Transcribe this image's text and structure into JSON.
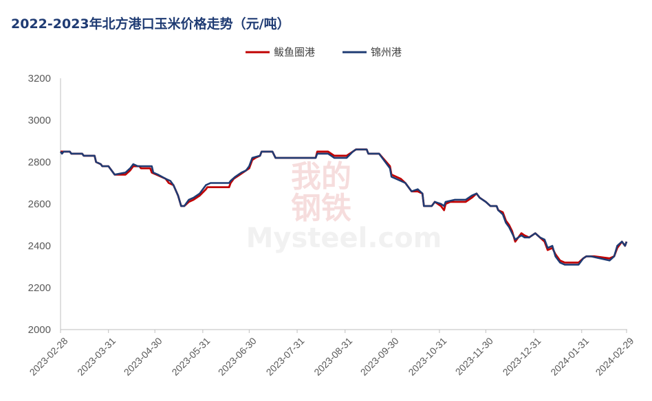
{
  "chart_data": {
    "type": "line",
    "title": "2022-2023年北方港口玉米价格走势（元/吨）",
    "xlabel": "",
    "ylabel": "",
    "ylim": [
      2000,
      3200
    ],
    "yticks": [
      2000,
      2200,
      2400,
      2600,
      2800,
      3000,
      3200
    ],
    "xlim": [
      "2023-02-28",
      "2024-02-29"
    ],
    "xticks": [
      "2023-02-28",
      "2023-03-31",
      "2023-04-30",
      "2023-05-31",
      "2023-06-30",
      "2023-07-31",
      "2023-08-31",
      "2023-09-30",
      "2023-10-31",
      "2023-11-30",
      "2023-12-31",
      "2024-01-31",
      "2024-02-29"
    ],
    "grid": false,
    "legend_position": "top-center",
    "series": [
      {
        "name": "鲅鱼圈港",
        "color": "#c00000",
        "points": [
          [
            "2023-02-28",
            2850
          ],
          [
            "2023-03-06",
            2850
          ],
          [
            "2023-03-07",
            2840
          ],
          [
            "2023-03-14",
            2840
          ],
          [
            "2023-03-15",
            2830
          ],
          [
            "2023-03-22",
            2830
          ],
          [
            "2023-03-23",
            2800
          ],
          [
            "2023-03-26",
            2790
          ],
          [
            "2023-03-27",
            2780
          ],
          [
            "2023-03-31",
            2780
          ],
          [
            "2023-04-02",
            2760
          ],
          [
            "2023-04-04",
            2740
          ],
          [
            "2023-04-11",
            2740
          ],
          [
            "2023-04-14",
            2760
          ],
          [
            "2023-04-16",
            2780
          ],
          [
            "2023-04-20",
            2780
          ],
          [
            "2023-04-21",
            2770
          ],
          [
            "2023-04-27",
            2770
          ],
          [
            "2023-04-28",
            2750
          ],
          [
            "2023-05-04",
            2730
          ],
          [
            "2023-05-07",
            2720
          ],
          [
            "2023-05-09",
            2700
          ],
          [
            "2023-05-12",
            2690
          ],
          [
            "2023-05-15",
            2640
          ],
          [
            "2023-05-17",
            2590
          ],
          [
            "2023-05-19",
            2590
          ],
          [
            "2023-05-22",
            2610
          ],
          [
            "2023-05-25",
            2620
          ],
          [
            "2023-05-29",
            2640
          ],
          [
            "2023-06-02",
            2670
          ],
          [
            "2023-06-03",
            2680
          ],
          [
            "2023-06-17",
            2680
          ],
          [
            "2023-06-18",
            2700
          ],
          [
            "2023-06-20",
            2720
          ],
          [
            "2023-06-24",
            2740
          ],
          [
            "2023-06-28",
            2760
          ],
          [
            "2023-06-30",
            2770
          ],
          [
            "2023-07-02",
            2810
          ],
          [
            "2023-07-04",
            2820
          ],
          [
            "2023-07-07",
            2830
          ],
          [
            "2023-07-08",
            2850
          ],
          [
            "2023-07-15",
            2850
          ],
          [
            "2023-07-17",
            2820
          ],
          [
            "2023-08-12",
            2820
          ],
          [
            "2023-08-13",
            2850
          ],
          [
            "2023-08-20",
            2850
          ],
          [
            "2023-08-22",
            2840
          ],
          [
            "2023-08-24",
            2830
          ],
          [
            "2023-09-01",
            2830
          ],
          [
            "2023-09-05",
            2850
          ],
          [
            "2023-09-07",
            2860
          ],
          [
            "2023-09-14",
            2860
          ],
          [
            "2023-09-15",
            2840
          ],
          [
            "2023-09-22",
            2840
          ],
          [
            "2023-09-29",
            2780
          ],
          [
            "2023-09-30",
            2740
          ],
          [
            "2023-10-03",
            2730
          ],
          [
            "2023-10-06",
            2720
          ],
          [
            "2023-10-09",
            2700
          ],
          [
            "2023-10-13",
            2660
          ],
          [
            "2023-10-17",
            2660
          ],
          [
            "2023-10-20",
            2650
          ],
          [
            "2023-10-21",
            2590
          ],
          [
            "2023-10-26",
            2590
          ],
          [
            "2023-10-28",
            2610
          ],
          [
            "2023-11-01",
            2590
          ],
          [
            "2023-11-02",
            2580
          ],
          [
            "2023-11-03",
            2570
          ],
          [
            "2023-11-04",
            2600
          ],
          [
            "2023-11-07",
            2610
          ],
          [
            "2023-11-17",
            2610
          ],
          [
            "2023-11-21",
            2630
          ],
          [
            "2023-11-24",
            2650
          ],
          [
            "2023-11-26",
            2630
          ],
          [
            "2023-11-30",
            2610
          ],
          [
            "2023-12-03",
            2590
          ],
          [
            "2023-12-07",
            2590
          ],
          [
            "2023-12-08",
            2570
          ],
          [
            "2023-12-11",
            2560
          ],
          [
            "2023-12-13",
            2520
          ],
          [
            "2023-12-15",
            2500
          ],
          [
            "2023-12-17",
            2470
          ],
          [
            "2023-12-19",
            2420
          ],
          [
            "2023-12-21",
            2440
          ],
          [
            "2023-12-23",
            2460
          ],
          [
            "2023-12-25",
            2450
          ],
          [
            "2023-12-28",
            2440
          ],
          [
            "2024-01-01",
            2460
          ],
          [
            "2024-01-04",
            2440
          ],
          [
            "2024-01-07",
            2420
          ],
          [
            "2024-01-09",
            2380
          ],
          [
            "2024-01-12",
            2390
          ],
          [
            "2024-01-14",
            2360
          ],
          [
            "2024-01-17",
            2330
          ],
          [
            "2024-01-20",
            2320
          ],
          [
            "2024-01-27",
            2320
          ],
          [
            "2024-01-29",
            2320
          ],
          [
            "2024-02-01",
            2340
          ],
          [
            "2024-02-03",
            2350
          ],
          [
            "2024-02-08",
            2350
          ],
          [
            "2024-02-18",
            2340
          ],
          [
            "2024-02-21",
            2350
          ],
          [
            "2024-02-23",
            2390
          ],
          [
            "2024-02-26",
            2420
          ],
          [
            "2024-02-28",
            2400
          ],
          [
            "2024-02-29",
            2420
          ]
        ]
      },
      {
        "name": "锦州港",
        "color": "#1f3b73",
        "points": [
          [
            "2023-02-28",
            2850
          ],
          [
            "2023-03-01",
            2840
          ],
          [
            "2023-03-02",
            2850
          ],
          [
            "2023-03-06",
            2850
          ],
          [
            "2023-03-07",
            2840
          ],
          [
            "2023-03-14",
            2840
          ],
          [
            "2023-03-15",
            2830
          ],
          [
            "2023-03-22",
            2830
          ],
          [
            "2023-03-23",
            2800
          ],
          [
            "2023-03-26",
            2790
          ],
          [
            "2023-03-27",
            2780
          ],
          [
            "2023-03-31",
            2780
          ],
          [
            "2023-04-02",
            2760
          ],
          [
            "2023-04-04",
            2740
          ],
          [
            "2023-04-11",
            2750
          ],
          [
            "2023-04-14",
            2770
          ],
          [
            "2023-04-16",
            2790
          ],
          [
            "2023-04-19",
            2780
          ],
          [
            "2023-04-28",
            2780
          ],
          [
            "2023-04-29",
            2750
          ],
          [
            "2023-05-02",
            2740
          ],
          [
            "2023-05-07",
            2720
          ],
          [
            "2023-05-10",
            2710
          ],
          [
            "2023-05-12",
            2690
          ],
          [
            "2023-05-15",
            2640
          ],
          [
            "2023-05-17",
            2590
          ],
          [
            "2023-05-19",
            2590
          ],
          [
            "2023-05-22",
            2620
          ],
          [
            "2023-05-25",
            2630
          ],
          [
            "2023-05-29",
            2650
          ],
          [
            "2023-06-02",
            2690
          ],
          [
            "2023-06-05",
            2700
          ],
          [
            "2023-06-17",
            2700
          ],
          [
            "2023-06-18",
            2710
          ],
          [
            "2023-06-21",
            2730
          ],
          [
            "2023-06-25",
            2750
          ],
          [
            "2023-06-28",
            2760
          ],
          [
            "2023-06-30",
            2780
          ],
          [
            "2023-07-02",
            2820
          ],
          [
            "2023-07-07",
            2830
          ],
          [
            "2023-07-08",
            2850
          ],
          [
            "2023-07-15",
            2850
          ],
          [
            "2023-07-17",
            2820
          ],
          [
            "2023-08-12",
            2820
          ],
          [
            "2023-08-13",
            2840
          ],
          [
            "2023-08-20",
            2840
          ],
          [
            "2023-08-22",
            2830
          ],
          [
            "2023-08-24",
            2820
          ],
          [
            "2023-09-01",
            2820
          ],
          [
            "2023-09-05",
            2850
          ],
          [
            "2023-09-07",
            2860
          ],
          [
            "2023-09-14",
            2860
          ],
          [
            "2023-09-15",
            2840
          ],
          [
            "2023-09-22",
            2840
          ],
          [
            "2023-09-29",
            2770
          ],
          [
            "2023-09-30",
            2730
          ],
          [
            "2023-10-03",
            2720
          ],
          [
            "2023-10-06",
            2710
          ],
          [
            "2023-10-09",
            2700
          ],
          [
            "2023-10-13",
            2660
          ],
          [
            "2023-10-17",
            2670
          ],
          [
            "2023-10-20",
            2650
          ],
          [
            "2023-10-21",
            2590
          ],
          [
            "2023-10-26",
            2590
          ],
          [
            "2023-10-28",
            2610
          ],
          [
            "2023-11-01",
            2600
          ],
          [
            "2023-11-03",
            2590
          ],
          [
            "2023-11-04",
            2610
          ],
          [
            "2023-11-10",
            2620
          ],
          [
            "2023-11-17",
            2620
          ],
          [
            "2023-11-21",
            2640
          ],
          [
            "2023-11-24",
            2650
          ],
          [
            "2023-11-26",
            2630
          ],
          [
            "2023-11-30",
            2610
          ],
          [
            "2023-12-03",
            2590
          ],
          [
            "2023-12-07",
            2590
          ],
          [
            "2023-12-08",
            2570
          ],
          [
            "2023-12-11",
            2550
          ],
          [
            "2023-12-13",
            2510
          ],
          [
            "2023-12-15",
            2490
          ],
          [
            "2023-12-17",
            2460
          ],
          [
            "2023-12-19",
            2430
          ],
          [
            "2023-12-21",
            2440
          ],
          [
            "2023-12-23",
            2450
          ],
          [
            "2023-12-25",
            2440
          ],
          [
            "2023-12-28",
            2440
          ],
          [
            "2024-01-01",
            2460
          ],
          [
            "2024-01-04",
            2440
          ],
          [
            "2024-01-07",
            2430
          ],
          [
            "2024-01-09",
            2390
          ],
          [
            "2024-01-12",
            2400
          ],
          [
            "2024-01-14",
            2350
          ],
          [
            "2024-01-17",
            2320
          ],
          [
            "2024-01-20",
            2310
          ],
          [
            "2024-01-29",
            2310
          ],
          [
            "2024-02-01",
            2340
          ],
          [
            "2024-02-03",
            2350
          ],
          [
            "2024-02-06",
            2350
          ],
          [
            "2024-02-18",
            2330
          ],
          [
            "2024-02-21",
            2350
          ],
          [
            "2024-02-23",
            2400
          ],
          [
            "2024-02-26",
            2420
          ],
          [
            "2024-02-28",
            2400
          ],
          [
            "2024-02-29",
            2420
          ]
        ]
      }
    ]
  },
  "watermark": {
    "line1": "我的",
    "line2": "钢铁",
    "brand": "Mysteel.com"
  }
}
